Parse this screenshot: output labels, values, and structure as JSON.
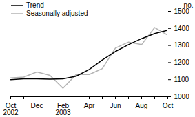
{
  "chart_data": {
    "type": "line",
    "categories": [
      "Oct 2002",
      null,
      "Dec",
      null,
      "Feb 2003",
      null,
      "Apr",
      null,
      "Jun",
      null,
      "Aug",
      null,
      "Oct"
    ],
    "y_label": "no.",
    "series": [
      {
        "name": "Trend",
        "color": "#000000",
        "values": [
          1100,
          1105,
          1105,
          1103,
          1105,
          1120,
          1160,
          1215,
          1265,
          1305,
          1340,
          1370,
          1390
        ]
      },
      {
        "name": "Seasonally adjusted",
        "color": "#b3b3b3",
        "values": [
          1110,
          1115,
          1145,
          1125,
          1050,
          1130,
          1130,
          1165,
          1285,
          1320,
          1305,
          1405,
          1360
        ]
      }
    ],
    "ylim": [
      1000,
      1500
    ],
    "yticks": [
      1000,
      1100,
      1200,
      1300,
      1400,
      1500
    ],
    "grid": false,
    "legend": "top-left"
  }
}
